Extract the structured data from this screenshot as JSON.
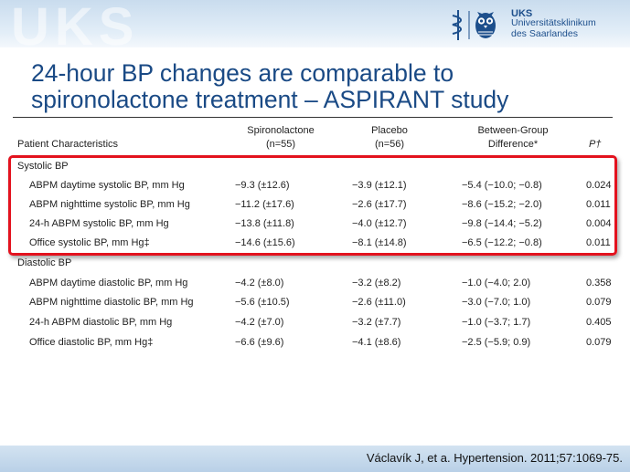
{
  "header": {
    "watermark": "UKS",
    "logo_abbr": "UKS",
    "logo_name_line1": "Universitätsklinikum",
    "logo_name_line2": "des Saarlandes"
  },
  "title": {
    "line1": "24-hour BP changes are comparable to",
    "line2": "spironolactone treatment – ASPIRANT study"
  },
  "table": {
    "col_label": "Patient Characteristics",
    "col_spiro_line1": "Spironolactone",
    "col_spiro_line2": "(n=55)",
    "col_placebo_line1": "Placebo",
    "col_placebo_line2": "(n=56)",
    "col_diff_line1": "Between-Group",
    "col_diff_line2": "Difference*",
    "col_p": "P†",
    "groups": [
      {
        "name": "Systolic BP",
        "rows": [
          {
            "label": "ABPM daytime systolic BP, mm Hg",
            "spiro": "−9.3 (±12.6)",
            "placebo": "−3.9 (±12.1)",
            "diff": "−5.4 (−10.0; −0.8)",
            "p": "0.024"
          },
          {
            "label": "ABPM nighttime systolic BP, mm Hg",
            "spiro": "−11.2 (±17.6)",
            "placebo": "−2.6 (±17.7)",
            "diff": "−8.6 (−15.2; −2.0)",
            "p": "0.011"
          },
          {
            "label": "24-h ABPM systolic BP, mm Hg",
            "spiro": "−13.8 (±11.8)",
            "placebo": "−4.0 (±12.7)",
            "diff": "−9.8 (−14.4; −5.2)",
            "p": "0.004"
          },
          {
            "label": "Office systolic BP, mm Hg‡",
            "spiro": "−14.6 (±15.6)",
            "placebo": "−8.1 (±14.8)",
            "diff": "−6.5 (−12.2; −0.8)",
            "p": "0.011"
          }
        ]
      },
      {
        "name": "Diastolic BP",
        "rows": [
          {
            "label": "ABPM daytime diastolic BP, mm Hg",
            "spiro": "−4.2 (±8.0)",
            "placebo": "−3.2 (±8.2)",
            "diff": "−1.0 (−4.0; 2.0)",
            "p": "0.358"
          },
          {
            "label": "ABPM nighttime diastolic BP, mm Hg",
            "spiro": "−5.6 (±10.5)",
            "placebo": "−2.6 (±11.0)",
            "diff": "−3.0 (−7.0; 1.0)",
            "p": "0.079"
          },
          {
            "label": "24-h ABPM diastolic BP, mm Hg",
            "spiro": "−4.2 (±7.0)",
            "placebo": "−3.2 (±7.7)",
            "diff": "−1.0 (−3.7; 1.7)",
            "p": "0.405"
          },
          {
            "label": "Office diastolic BP, mm Hg‡",
            "spiro": "−6.6 (±9.6)",
            "placebo": "−4.1 (±8.6)",
            "diff": "−2.5 (−5.9; 0.9)",
            "p": "0.079"
          }
        ]
      }
    ]
  },
  "footer": {
    "citation": "Václavík J, et a. Hypertension. 2011;57:1069-75."
  },
  "colors": {
    "title": "#1a4a85",
    "highlight_border": "#e3121e",
    "header_band": "#c9dcee",
    "footer_band": "#b9d0e7"
  }
}
